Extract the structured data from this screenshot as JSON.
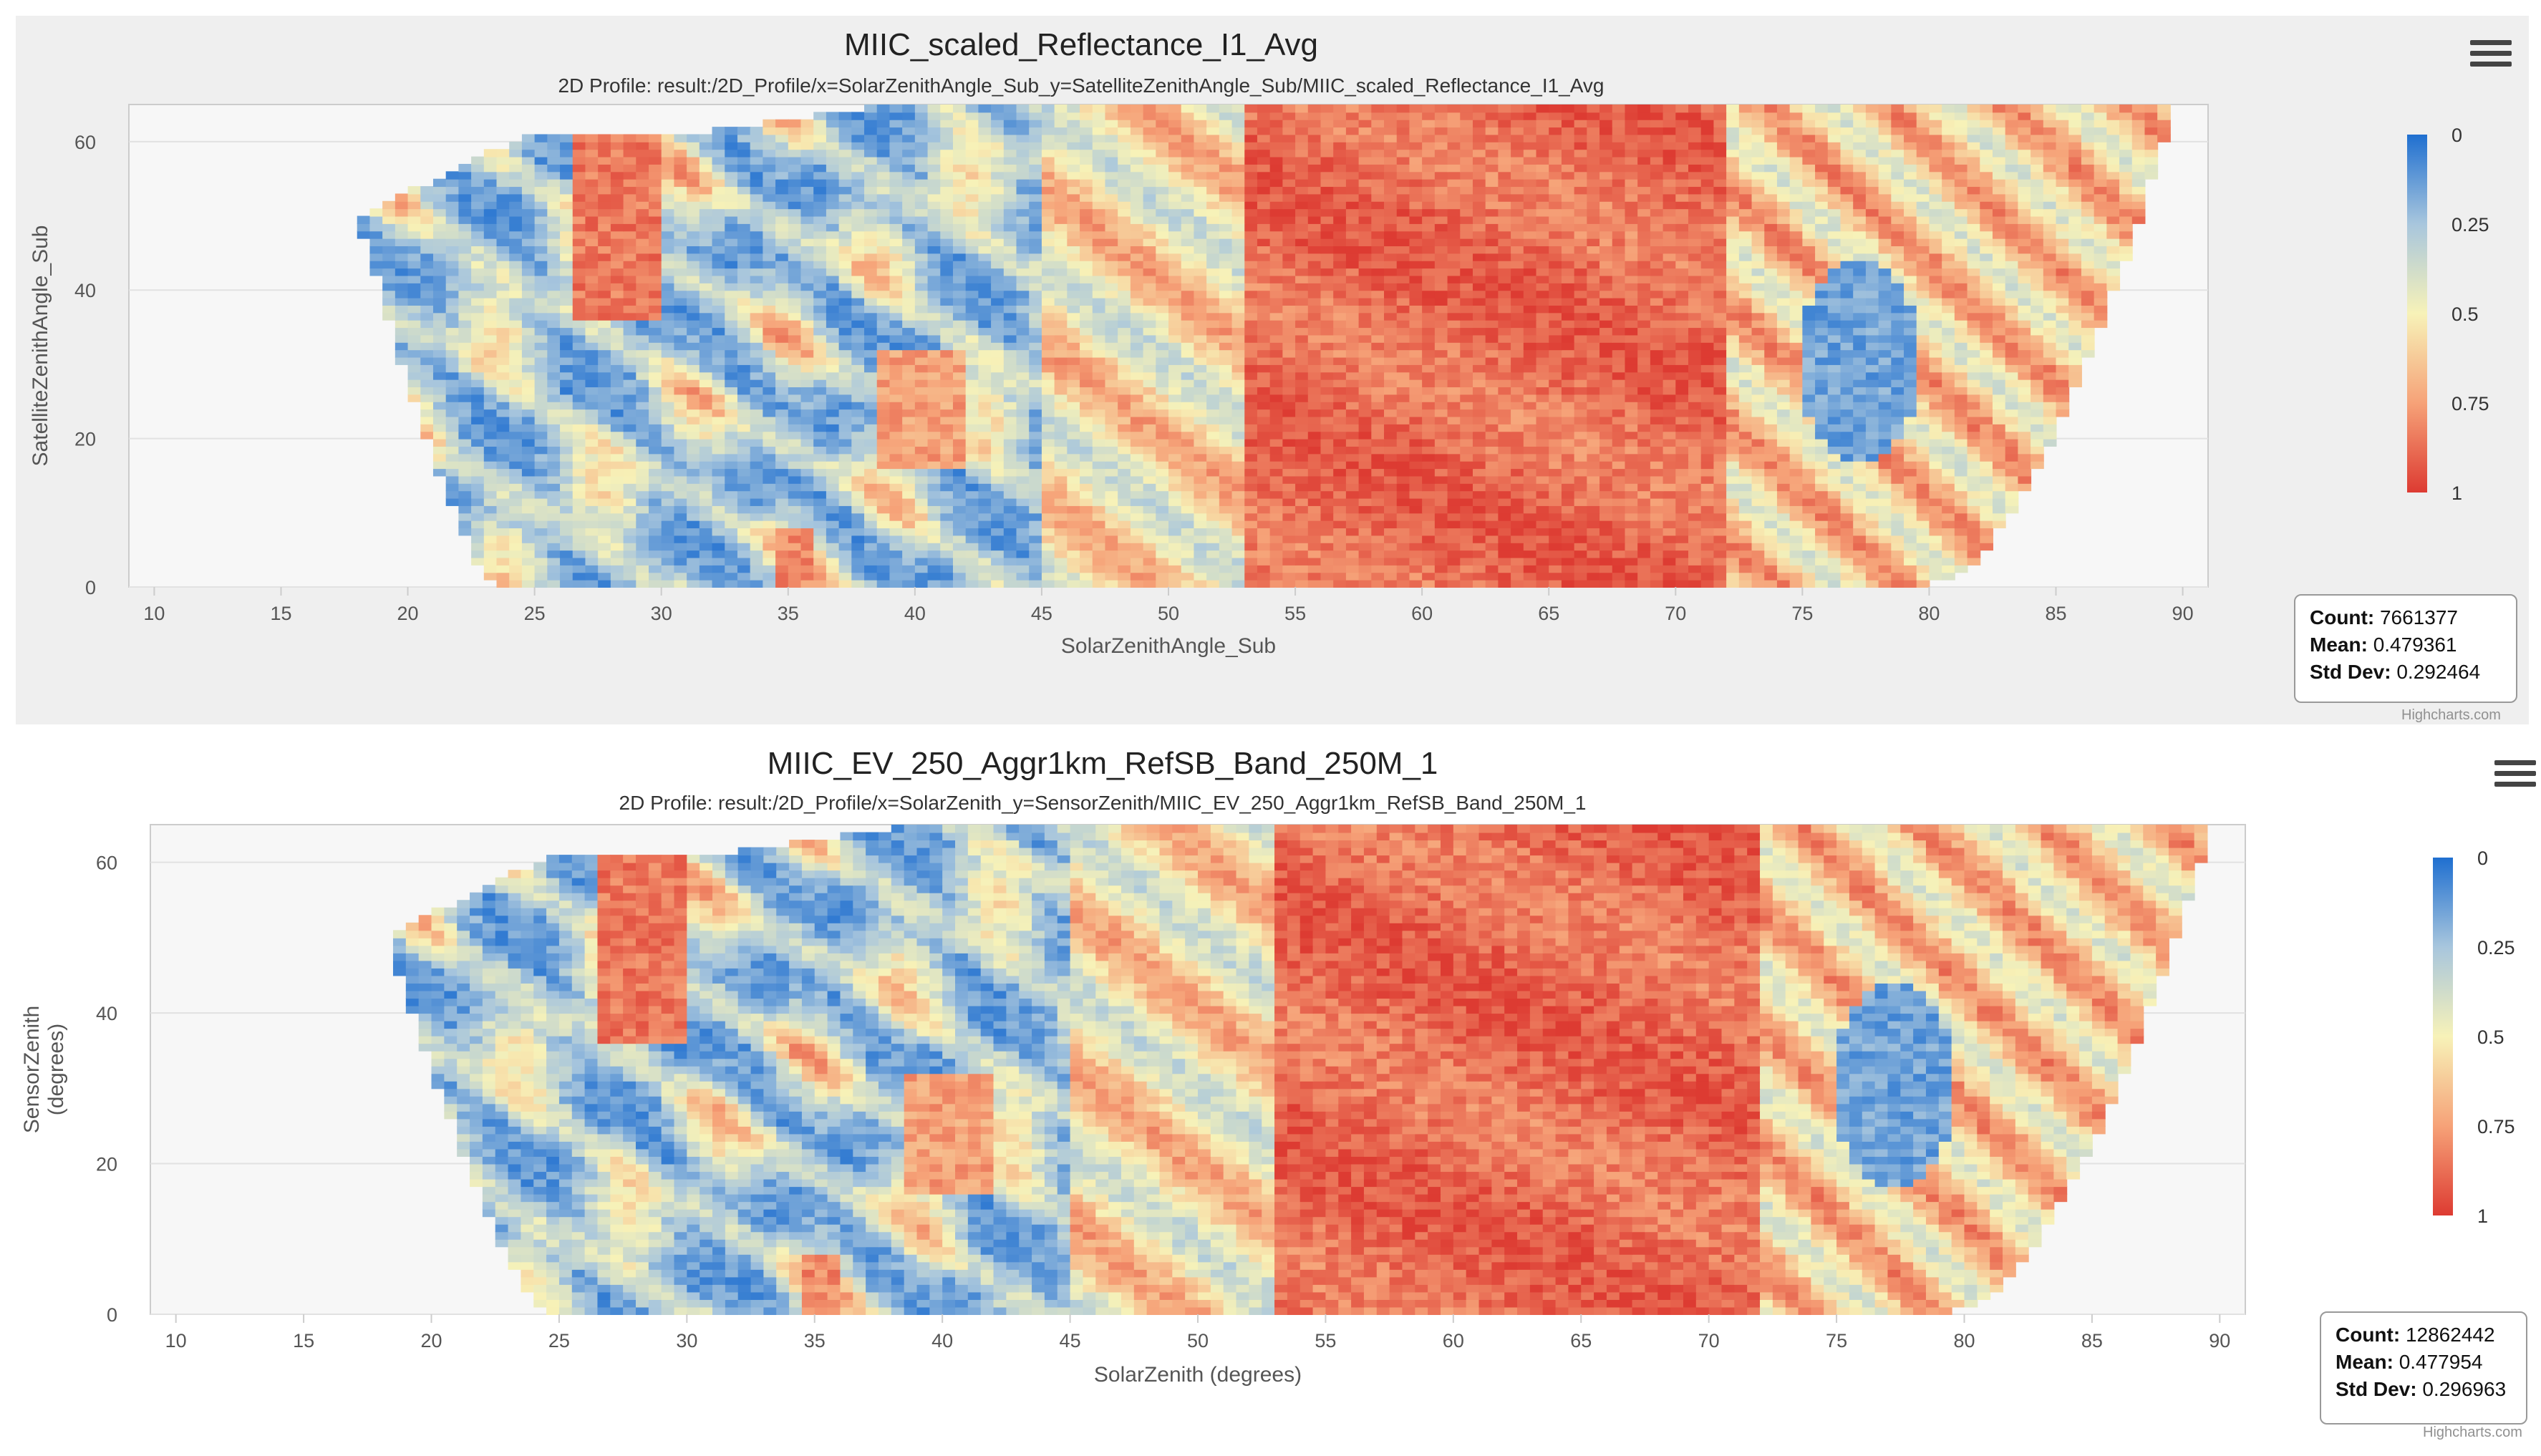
{
  "chart_data": [
    {
      "type": "heatmap",
      "title": "MIIC_scaled_Reflectance_I1_Avg",
      "subtitle": "2D Profile: result:/2D_Profile/x=SolarZenithAngle_Sub_y=SatelliteZenithAngle_Sub/MIIC_scaled_Reflectance_I1_Avg",
      "xlabel": "SolarZenithAngle_Sub",
      "ylabel": "SatelliteZenithAngle_Sub",
      "xlim": [
        9,
        91
      ],
      "ylim": [
        0,
        65
      ],
      "x_ticks": [
        "10",
        "15",
        "20",
        "25",
        "30",
        "35",
        "40",
        "45",
        "50",
        "55",
        "60",
        "65",
        "70",
        "75",
        "80",
        "85",
        "90"
      ],
      "y_ticks": [
        "0",
        "20",
        "40",
        "60"
      ],
      "colorbar": {
        "ticks": [
          "0",
          "0.25",
          "0.5",
          "0.75",
          "1"
        ],
        "colors": [
          "#1f6fd0",
          "#a8c6dd",
          "#f7f2b8",
          "#f6a278",
          "#dd3b32"
        ]
      },
      "coverage": {
        "left_bottom_x": 23.5,
        "left_top_x": 17,
        "right_bottom_x": 80,
        "right_top_x": 89.5,
        "top_y": 65
      },
      "stats": {
        "count_label": "Count:",
        "count": "7661377",
        "mean_label": "Mean:",
        "mean": "0.479361",
        "std_label": "Std Dev:",
        "std": "0.292464"
      },
      "credits": "Highcharts.com"
    },
    {
      "type": "heatmap",
      "title": "MIIC_EV_250_Aggr1km_RefSB_Band_250M_1",
      "subtitle": "2D Profile: result:/2D_Profile/x=SolarZenith_y=SensorZenith/MIIC_EV_250_Aggr1km_RefSB_Band_250M_1",
      "xlabel": "SolarZenith (degrees)",
      "ylabel": "SensorZenith",
      "ylabel2": "(degrees)",
      "xlim": [
        9,
        91
      ],
      "ylim": [
        0,
        65
      ],
      "x_ticks": [
        "10",
        "15",
        "20",
        "25",
        "30",
        "35",
        "40",
        "45",
        "50",
        "55",
        "60",
        "65",
        "70",
        "75",
        "80",
        "85",
        "90"
      ],
      "y_ticks": [
        "0",
        "20",
        "40",
        "60"
      ],
      "colorbar": {
        "ticks": [
          "0",
          "0.25",
          "0.5",
          "0.75",
          "1"
        ],
        "colors": [
          "#1f6fd0",
          "#a8c6dd",
          "#f7f2b8",
          "#f6a278",
          "#dd3b32"
        ]
      },
      "coverage": {
        "left_bottom_x": 24.5,
        "left_top_x": 17,
        "right_bottom_x": 79.5,
        "right_top_x": 89.5,
        "top_y": 65
      },
      "stats": {
        "count_label": "Count:",
        "count": "12862442",
        "mean_label": "Mean:",
        "mean": "0.477954",
        "std_label": "Std Dev:",
        "std": "0.296963"
      },
      "credits": "Highcharts.com"
    }
  ]
}
